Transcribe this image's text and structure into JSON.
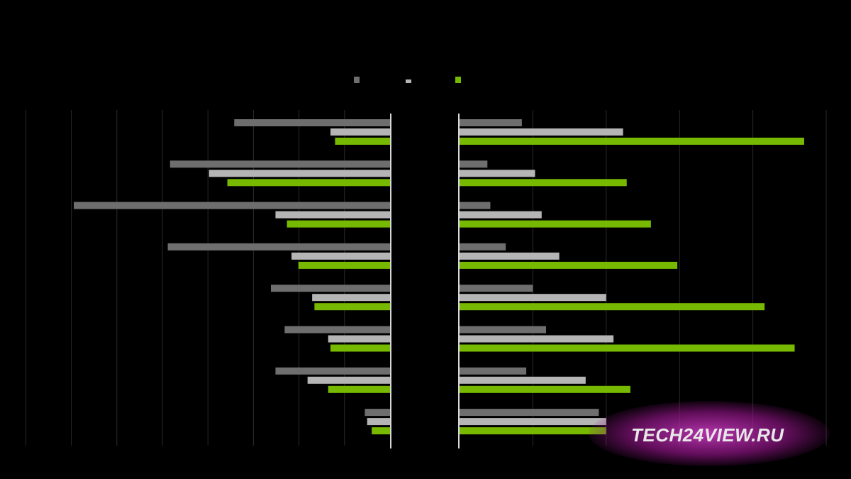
{
  "chart_data": [
    {
      "panel": "left",
      "type": "bar",
      "orientation": "horizontal",
      "direction": "right-to-left",
      "title": "",
      "xlabel": "",
      "ylabel": "",
      "categories": [
        "",
        "",
        "",
        "",
        "",
        "",
        "",
        ""
      ],
      "series": [
        {
          "name": "",
          "color": "#6e6e6e",
          "values": [
            34,
            48,
            69,
            48.5,
            26,
            23,
            25,
            5.5
          ]
        },
        {
          "name": "",
          "color": "#b5b5b5",
          "values": [
            13,
            39.5,
            25,
            21.5,
            17,
            13.5,
            18,
            5
          ]
        },
        {
          "name": "",
          "color": "#76b900",
          "values": [
            12,
            35.5,
            22.5,
            20,
            16.5,
            13,
            13.5,
            4
          ]
        }
      ],
      "xlim": [
        0,
        80
      ],
      "grid": true,
      "legend": "top-center"
    },
    {
      "panel": "right",
      "type": "bar",
      "orientation": "horizontal",
      "title": "",
      "xlabel": "",
      "ylabel": "",
      "categories": [
        "",
        "",
        "",
        "",
        "",
        "",
        "",
        ""
      ],
      "series": [
        {
          "name": "",
          "color": "#6e6e6e",
          "values": [
            0.85,
            0.38,
            0.42,
            0.63,
            1.0,
            1.18,
            0.91,
            1.9
          ]
        },
        {
          "name": "",
          "color": "#b5b5b5",
          "values": [
            2.23,
            1.03,
            1.12,
            1.36,
            2.0,
            2.1,
            1.72,
            2.0
          ]
        },
        {
          "name": "",
          "color": "#76b900",
          "values": [
            4.7,
            2.28,
            2.61,
            2.97,
            4.16,
            4.57,
            2.33,
            2.0
          ]
        }
      ],
      "xlim": [
        0,
        5
      ],
      "grid": true,
      "legend": "top-center"
    }
  ],
  "legend": {
    "items": [
      {
        "label": "",
        "color": "#6e6e6e"
      },
      {
        "label": "",
        "color": "#b5b5b5"
      },
      {
        "label": "",
        "color": "#76b900"
      }
    ]
  },
  "watermark": {
    "text": "TECH24VIEW.RU"
  }
}
